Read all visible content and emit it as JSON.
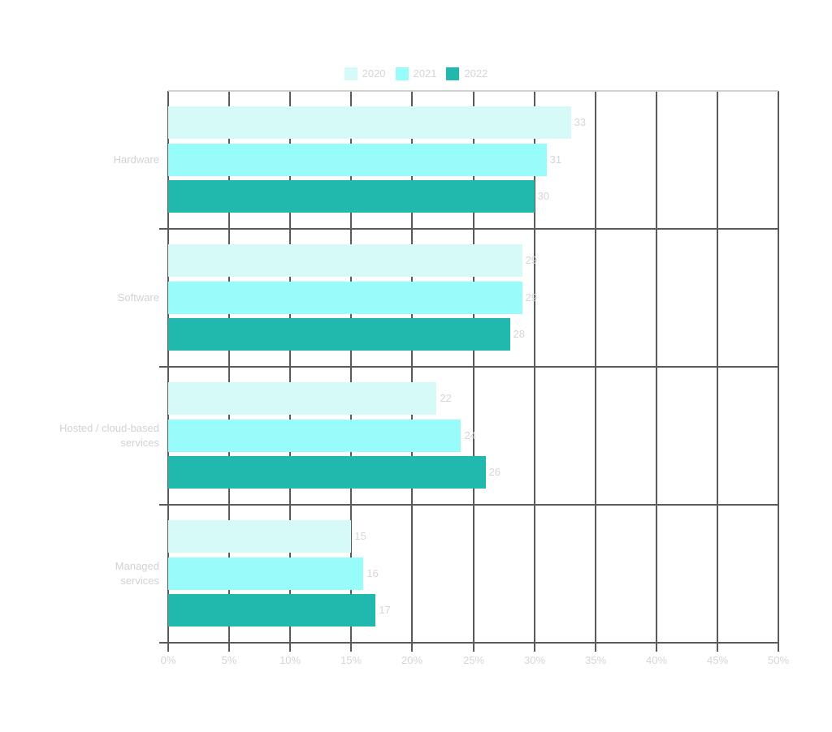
{
  "chart_data": {
    "type": "bar",
    "orientation": "horizontal",
    "title": "",
    "xlabel": "",
    "ylabel": "",
    "categories": [
      "Hardware",
      "Software",
      "Hosted / cloud-based services",
      "Managed services"
    ],
    "series": [
      {
        "name": "2020",
        "color": "#d6faf8",
        "values": [
          33,
          29,
          22,
          15
        ]
      },
      {
        "name": "2021",
        "color": "#98fdfa",
        "values": [
          31,
          29,
          24,
          16
        ]
      },
      {
        "name": "2022",
        "color": "#21b8ae",
        "values": [
          30,
          28,
          26,
          17
        ]
      }
    ],
    "xlim": [
      0,
      50
    ],
    "x_ticks": [
      "0%",
      "5%",
      "10%",
      "15%",
      "20%",
      "25%",
      "30%",
      "35%",
      "40%",
      "45%",
      "50%"
    ],
    "grid": true,
    "legend_position": "top",
    "data_labels": true
  },
  "legend": {
    "items": [
      {
        "label": "2020",
        "color": "#d6faf8"
      },
      {
        "label": "2021",
        "color": "#98fdfa"
      },
      {
        "label": "2022",
        "color": "#21b8ae"
      }
    ]
  },
  "category_labels": [
    "Hardware",
    "Software",
    "Hosted / cloud-based\nservices",
    "Managed\nservices"
  ],
  "axis": {
    "x_tick_labels": [
      "0%",
      "5%",
      "10%",
      "15%",
      "20%",
      "25%",
      "30%",
      "35%",
      "40%",
      "45%",
      "50%"
    ]
  }
}
